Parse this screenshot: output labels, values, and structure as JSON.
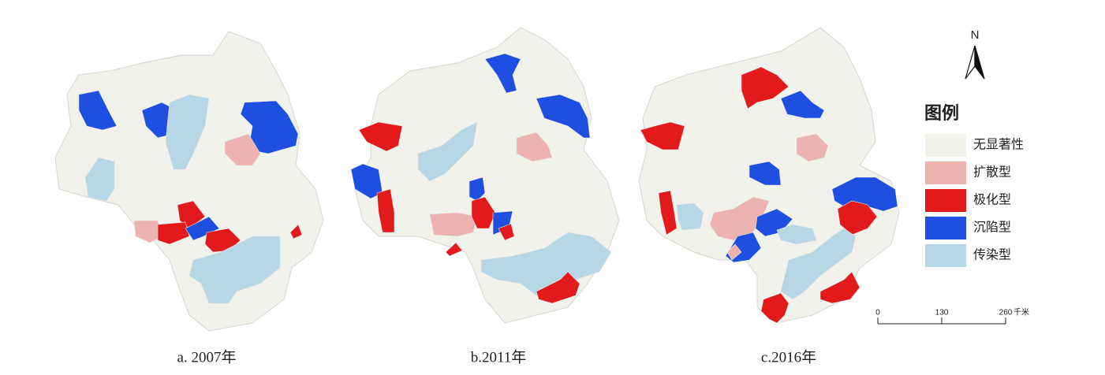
{
  "maps": [
    {
      "caption": "a. 2007年"
    },
    {
      "caption": "b.2011年"
    },
    {
      "caption": "c.2016年"
    }
  ],
  "north": "N",
  "legend": {
    "title": "图例",
    "items": [
      {
        "label": "无显著性",
        "color": "#f2f2ec"
      },
      {
        "label": "扩散型",
        "color": "#eeb3b1"
      },
      {
        "label": "极化型",
        "color": "#e31a1c"
      },
      {
        "label": "沉陷型",
        "color": "#1f4fe0"
      },
      {
        "label": "传染型",
        "color": "#b7d7e6"
      }
    ]
  },
  "scale_bar": {
    "ticks": [
      0,
      130,
      260
    ],
    "unit": "千米"
  }
}
